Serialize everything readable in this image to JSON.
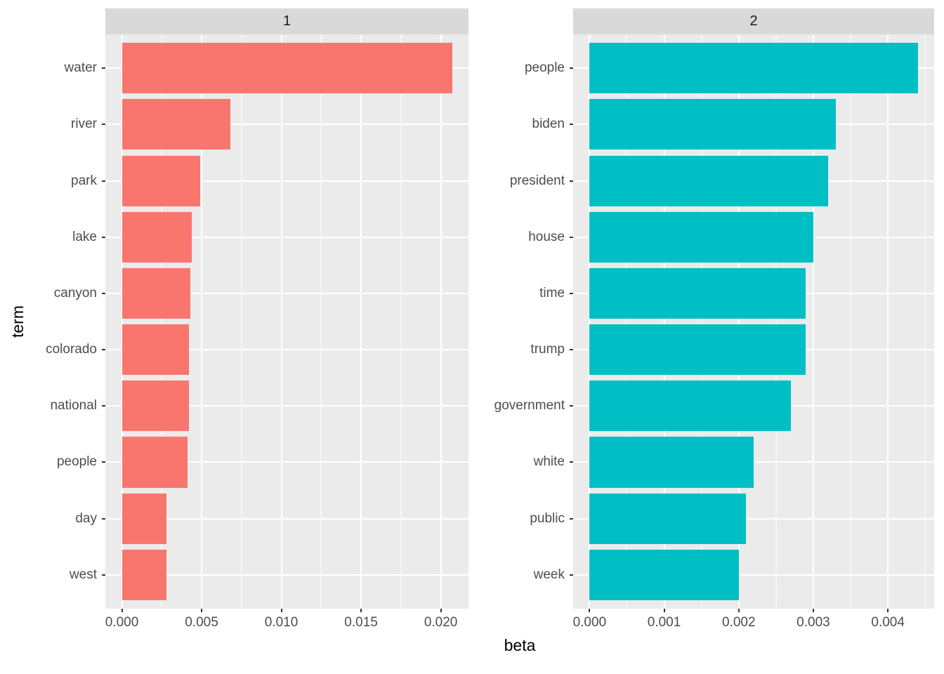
{
  "chart_data": {
    "type": "bar",
    "orientation": "horizontal",
    "xlabel": "beta",
    "ylabel": "term",
    "grid": "on",
    "legend": "none",
    "style": {
      "panel_bg": "#EBEBEB",
      "strip_bg": "#D9D9D9",
      "grid_color": "#FFFFFF",
      "axis_text_color": "#4D4D4D",
      "tick_color": "#333333"
    },
    "facets": [
      {
        "label": "1",
        "color": "#F8766D",
        "categories": [
          "water",
          "river",
          "park",
          "lake",
          "canyon",
          "colorado",
          "national",
          "people",
          "day",
          "west"
        ],
        "values": [
          0.0207,
          0.0068,
          0.0049,
          0.0044,
          0.0043,
          0.0042,
          0.0042,
          0.0041,
          0.0028,
          0.0028
        ],
        "xticks": [
          0,
          0.005,
          0.01,
          0.015,
          0.02
        ],
        "xtick_labels": [
          "0.000",
          "0.005",
          "0.010",
          "0.015",
          "0.020"
        ],
        "xlim": [
          0,
          0.0217
        ]
      },
      {
        "label": "2",
        "color": "#00BFC4",
        "categories": [
          "people",
          "biden",
          "president",
          "house",
          "time",
          "trump",
          "government",
          "white",
          "public",
          "week"
        ],
        "values": [
          0.0044,
          0.0033,
          0.0032,
          0.003,
          0.0029,
          0.0029,
          0.0027,
          0.0022,
          0.0021,
          0.002
        ],
        "xticks": [
          0,
          0.001,
          0.002,
          0.003,
          0.004
        ],
        "xtick_labels": [
          "0.000",
          "0.001",
          "0.002",
          "0.003",
          "0.004"
        ],
        "xlim": [
          0,
          0.00462
        ]
      }
    ]
  }
}
